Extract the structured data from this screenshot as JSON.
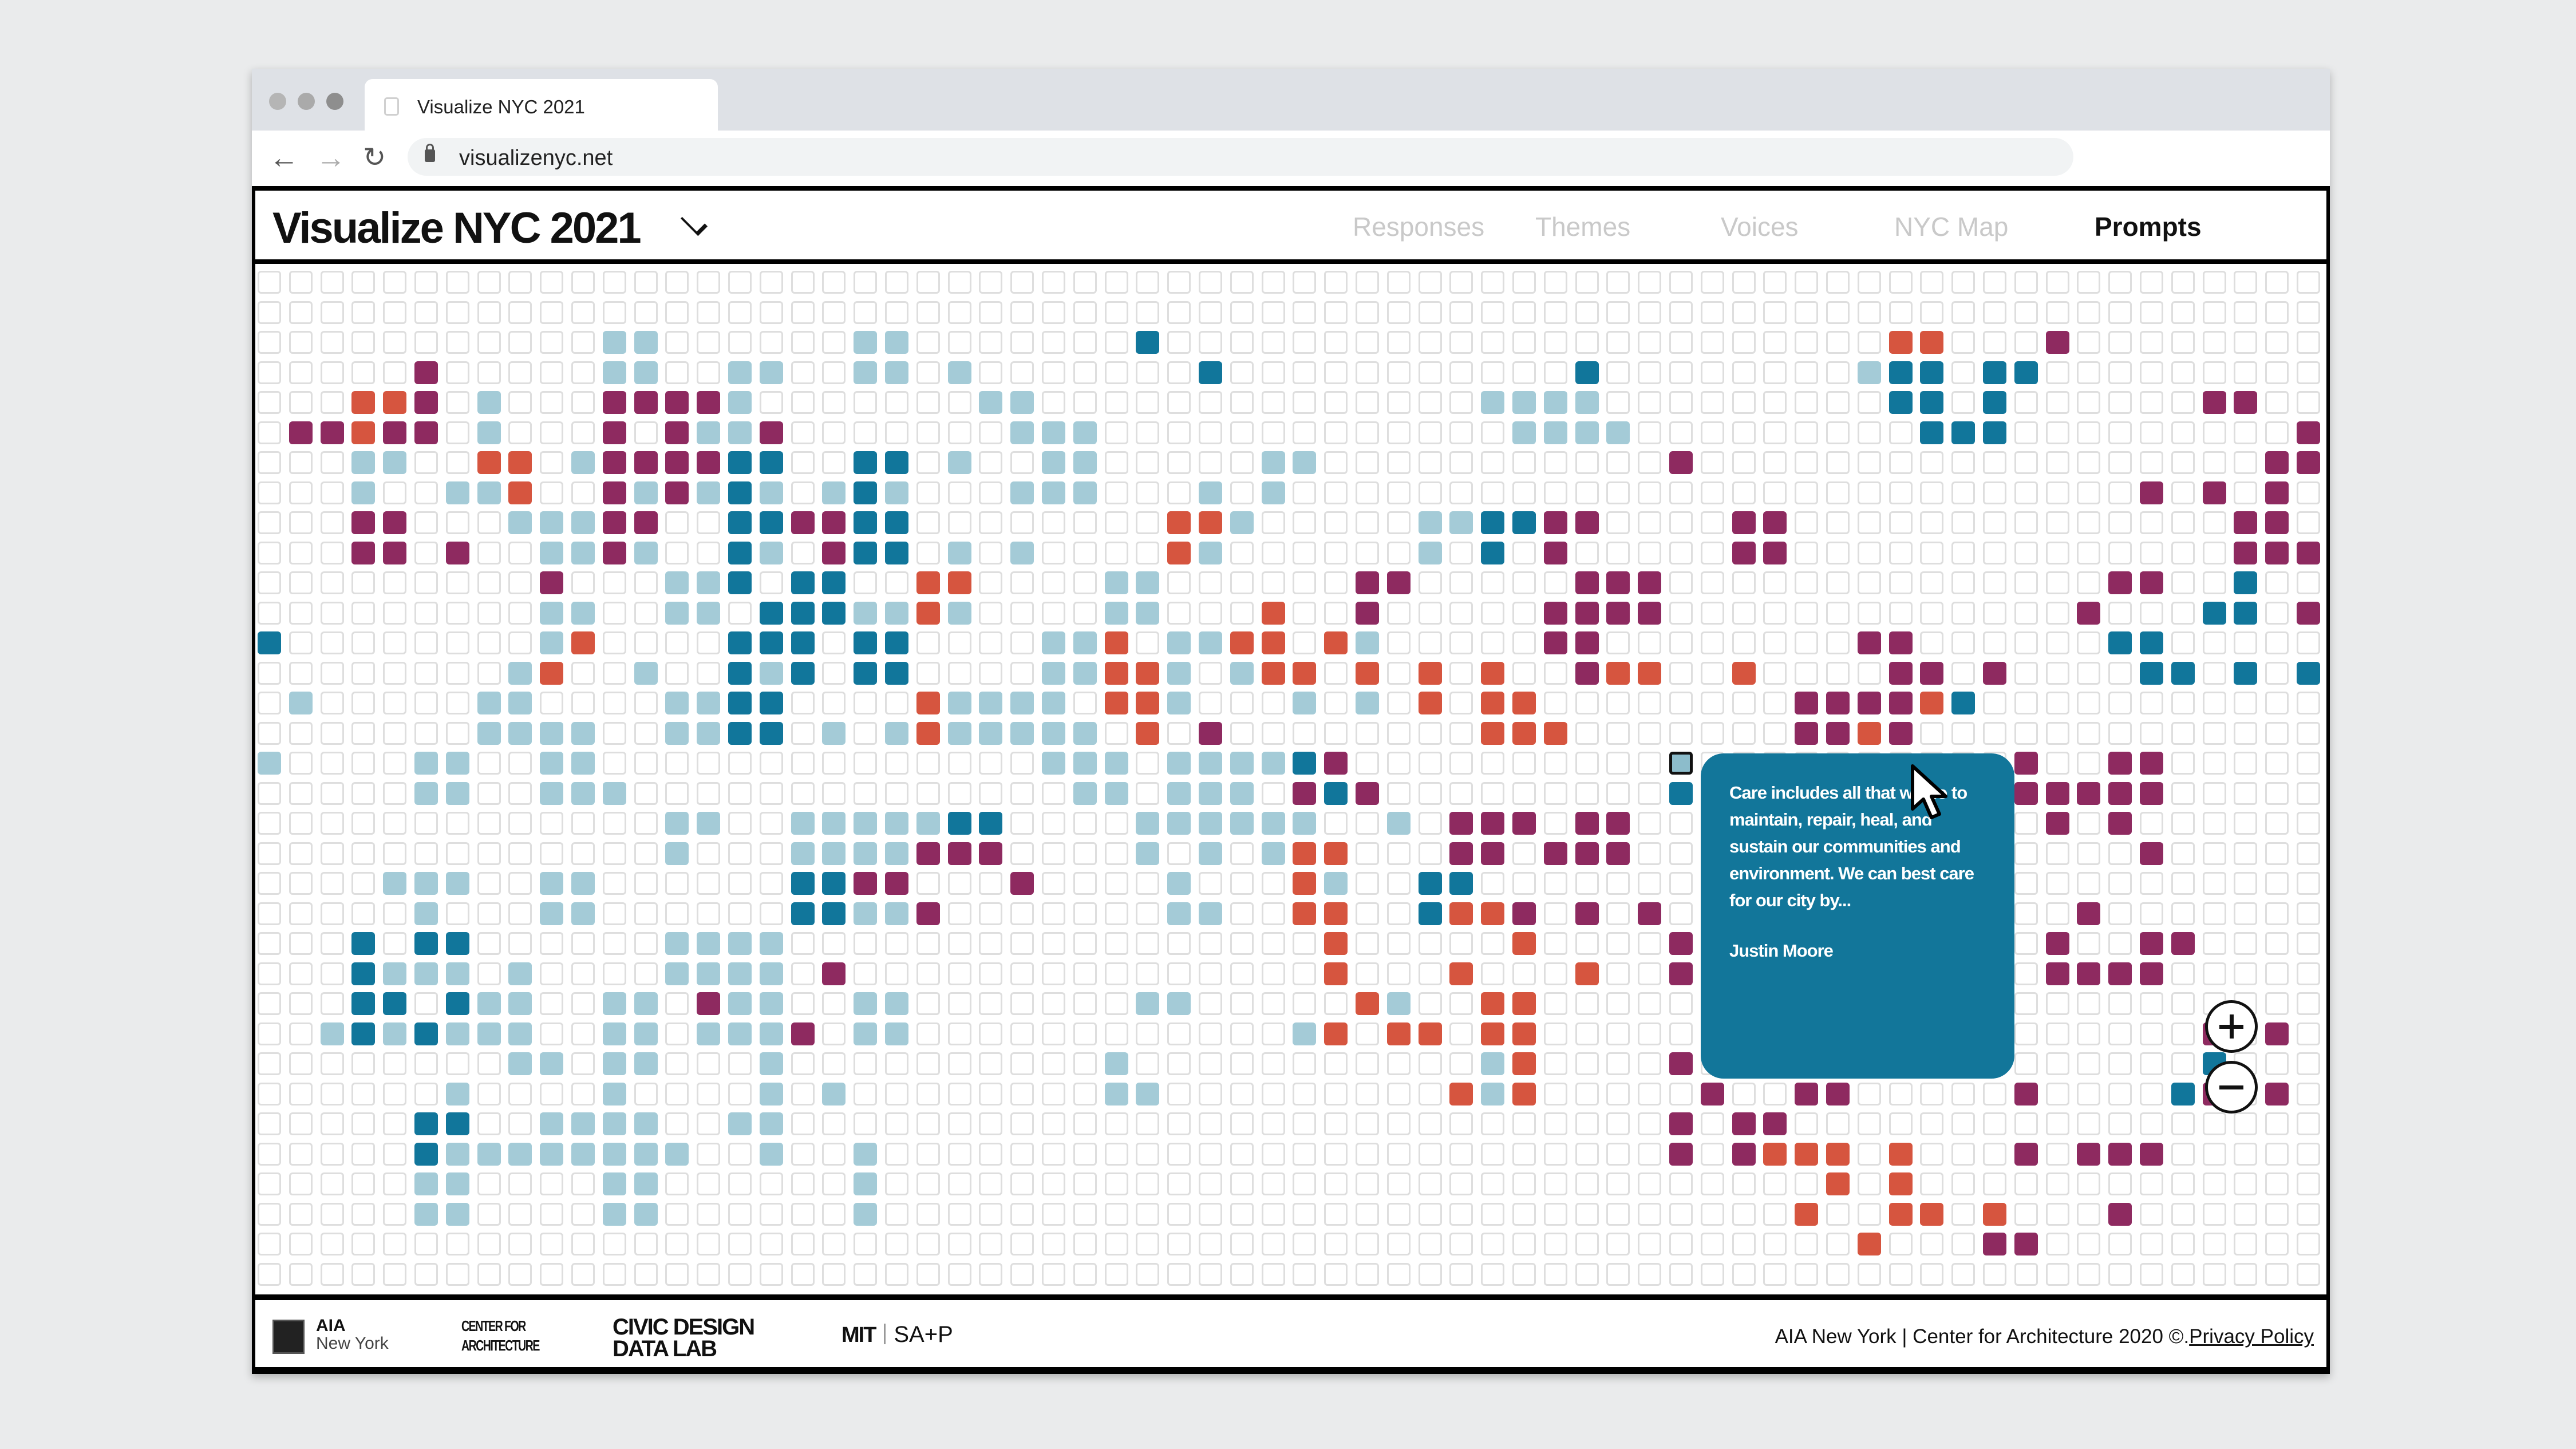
{
  "browser": {
    "tab_title": "Visualize NYC 2021",
    "url": "visualizenyc.net"
  },
  "header": {
    "title": "Visualize NYC 2021",
    "nav": [
      {
        "label": "Responses",
        "active": false
      },
      {
        "label": "Themes",
        "active": false
      },
      {
        "label": "Voices",
        "active": false
      },
      {
        "label": "NYC Map",
        "active": false
      },
      {
        "label": "Prompts",
        "active": true
      }
    ]
  },
  "colors": {
    "light_blue": "#a4cbd7",
    "teal": "#11769b",
    "purple": "#8e2a60",
    "orange": "#d6553f"
  },
  "grid": {
    "legend": {
      ".": "empty",
      "l": "light_blue",
      "b": "teal",
      "p": "purple",
      "o": "orange",
      "h": "selected"
    },
    "rows": [
      "..................................................................",
      "..................................................................",
      "...........ll......ll.......b.......................oo...p.........",
      ".....p.....ll..ll..ll.l.......b...........b........lbb.bb.........",
      "...oop.l...ppppl.......ll..............llll.........bb.b......pp.",
      ".ppopp.l...p.pllp.......lll.............llll.........bbb.........pp.",
      "...ll..oo.lppppbb..bb.l..ll.....ll...........p..................pp.",
      "...l..llo..plplbl.lbl...lll...l.l...........................p.p.p.",
      "...pp...lllpp..bbppbb........ool.....llbbpp....pp..............pp...",
      "...pp.p..llpl..bl.pbb.l.l....ol......l.b.p.....pp..............pppp.",
      ".........p...llb.bb..oo....ll......pp.....ppp..............pp..b....",
      ".........ll..ll.bbbllol....ll...o..p.....pppp.............p...bb.p.",
      "b........lo....bbb.bb....llo.lloo.ol.....pp........pp......bb.....",
      "........lo..l..blb.bb....llool.loo.o.o.o..poo..o....pp.p....bb.b.b.",
      ".l.....ll....llbb....ollll.ool...l.l.o.oo........ppppob...........",
      ".......llll..llbb.l.lolllll.o.p........ooo.......ppop.............",
      "l....ll..ll..............lll.llllbp..........h..........p..pp.....",
      ".....ll..lll..............ll.lll.pbp.........b..........ppppp.....",
      ".............ll..lllllbb....llllll..l.ppp.pp.............p.p.......",
      ".............l...llllppp....l.l.loo...pp.ppp................p......",
      "....lll..ll......bbpp...p....l...ol..bb...........................",
      ".....l...ll......bbllp.......ll..oo..boop.p.p.............p.......",
      "...b.bb......llll.................o.....o....pp..........p..pp.....",
      "...blll.l....llll.p...............o...o...o..pp..........pppp......",
      "...bb.bll..ll.pll..ll.......ll.....ol..oo..............p.........",
      "..lblblll..ll.lllp.ll............lo.oo.oo.....................p.p.",
      "........ll.ll...l..........l...........lo....p................b...",
      "......l....l....l.l........ll.........olo.....p..pp.....p....bp.p.",
      ".....bb..llll..ll............................p.pp.................",
      ".....bllllllll..l..l.........................p.pooo.o...p.ppp.....",
      ".....ll....ll......l..............................o.o.............",
      ".....ll....ll......l.............................o..oo.o...p.......",
      "...................................................o...pp.........",
      ".................................................................."
    ]
  },
  "tooltip": {
    "quote": "Care includes all that we do to maintain, repair, heal, and sustain our communities and environment. We can best care for our city by...",
    "author": "Justin Moore"
  },
  "footer": {
    "logos": {
      "aia_line1": "AIA",
      "aia_line2": "New York",
      "cfa_line1": "CENTER FOR",
      "cfa_line2": "ARCHITECTURE",
      "cddl_line1": "CIVIC DESIGN",
      "cddl_line2": "DATA LAB",
      "mit": "MIT",
      "sap": "SA+P"
    },
    "copyright": "AIA New York | Center for Architecture 2020 ©.",
    "privacy_link": "Privacy Policy"
  }
}
